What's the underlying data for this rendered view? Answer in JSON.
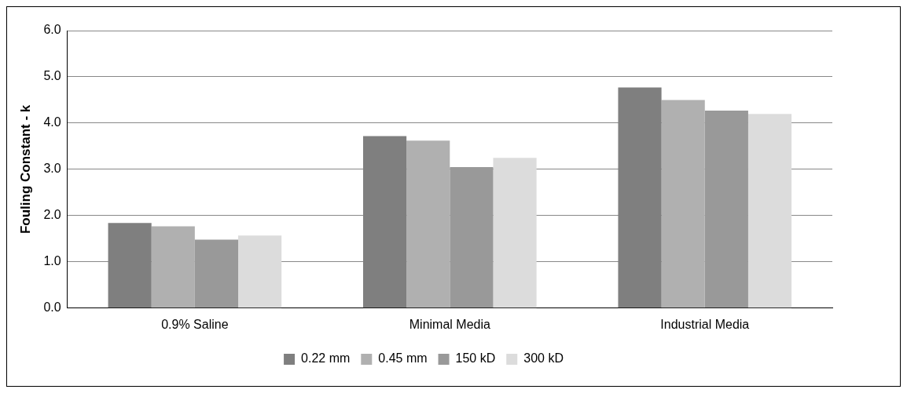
{
  "chart_data": {
    "type": "bar",
    "ylabel": "Fouling Constant - k",
    "categories": [
      "0.9% Saline",
      "Minimal Media",
      "Industrial Media"
    ],
    "series": [
      {
        "name": "0.22 mm",
        "color": "#7f7f7f",
        "values": [
          1.84,
          3.72,
          4.77
        ]
      },
      {
        "name": "0.45 mm",
        "color": "#b0b0b0",
        "values": [
          1.77,
          3.62,
          4.5
        ]
      },
      {
        "name": "150 kD",
        "color": "#999999",
        "values": [
          1.48,
          3.05,
          4.27
        ]
      },
      {
        "name": "300 kD",
        "color": "#dcdcdc",
        "values": [
          1.57,
          3.25,
          4.2
        ]
      }
    ],
    "ylim": [
      0,
      6
    ],
    "yticks": [
      {
        "value": 0,
        "label": "0.0"
      },
      {
        "value": 1,
        "label": "1.0"
      },
      {
        "value": 2,
        "label": "2.0"
      },
      {
        "value": 3,
        "label": "3.0"
      },
      {
        "value": 4,
        "label": "4.0"
      },
      {
        "value": 5,
        "label": "5.0"
      },
      {
        "value": 6,
        "label": "6.0"
      }
    ],
    "grid": "y",
    "legend": "bottom"
  }
}
